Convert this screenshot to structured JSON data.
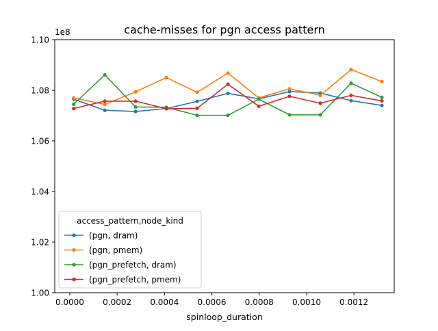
{
  "chart_data": {
    "type": "line",
    "title": "cache-misses for pgn access pattern",
    "xlabel": "spinloop_duration",
    "ylabel": "",
    "y_offset_text": "1e8",
    "xlim": [
      -6.34e-05,
      0.00137
    ],
    "ylim": [
      1.0,
      1.1
    ],
    "x_ticks": [
      0.0,
      0.0002,
      0.0004,
      0.0006,
      0.0008,
      0.001,
      0.0012
    ],
    "x_tick_labels": [
      "0.0000",
      "0.0002",
      "0.0004",
      "0.0006",
      "0.0008",
      "0.0010",
      "0.0012"
    ],
    "y_ticks": [
      1.0,
      1.02,
      1.04,
      1.06,
      1.08,
      1.1
    ],
    "y_tick_labels": [
      "1.00",
      "1.02",
      "1.04",
      "1.06",
      "1.08",
      "1.10"
    ],
    "grid": false,
    "legend": {
      "title": "access_pattern,node_kind",
      "placement": "lower-left"
    },
    "x": [
      1.67e-05,
      0.000148,
      0.000278,
      0.000408,
      0.000538,
      0.000668,
      0.000798,
      0.000928,
      0.001058,
      0.001188,
      0.001318
    ],
    "series": [
      {
        "name": "(pgn, dram)",
        "color": "#1f77b4",
        "values": [
          1.0765,
          1.0721,
          1.0716,
          1.0728,
          1.0756,
          1.0788,
          1.0766,
          1.0795,
          1.0789,
          1.0759,
          1.074
        ]
      },
      {
        "name": "(pgn, pmem)",
        "color": "#ff7f0e",
        "values": [
          1.077,
          1.0744,
          1.0794,
          1.085,
          1.0792,
          1.0868,
          1.077,
          1.0806,
          1.078,
          1.0882,
          1.0834
        ]
      },
      {
        "name": "(pgn_prefetch, dram)",
        "color": "#2ca02c",
        "values": [
          1.0745,
          1.0861,
          1.0734,
          1.0733,
          1.0701,
          1.0701,
          1.0765,
          1.0703,
          1.0703,
          1.0828,
          1.0772
        ]
      },
      {
        "name": "(pgn_prefetch, pmem)",
        "color": "#d62728",
        "values": [
          1.0728,
          1.0757,
          1.0757,
          1.0727,
          1.0729,
          1.0824,
          1.0737,
          1.0776,
          1.0749,
          1.078,
          1.0758
        ]
      }
    ]
  }
}
